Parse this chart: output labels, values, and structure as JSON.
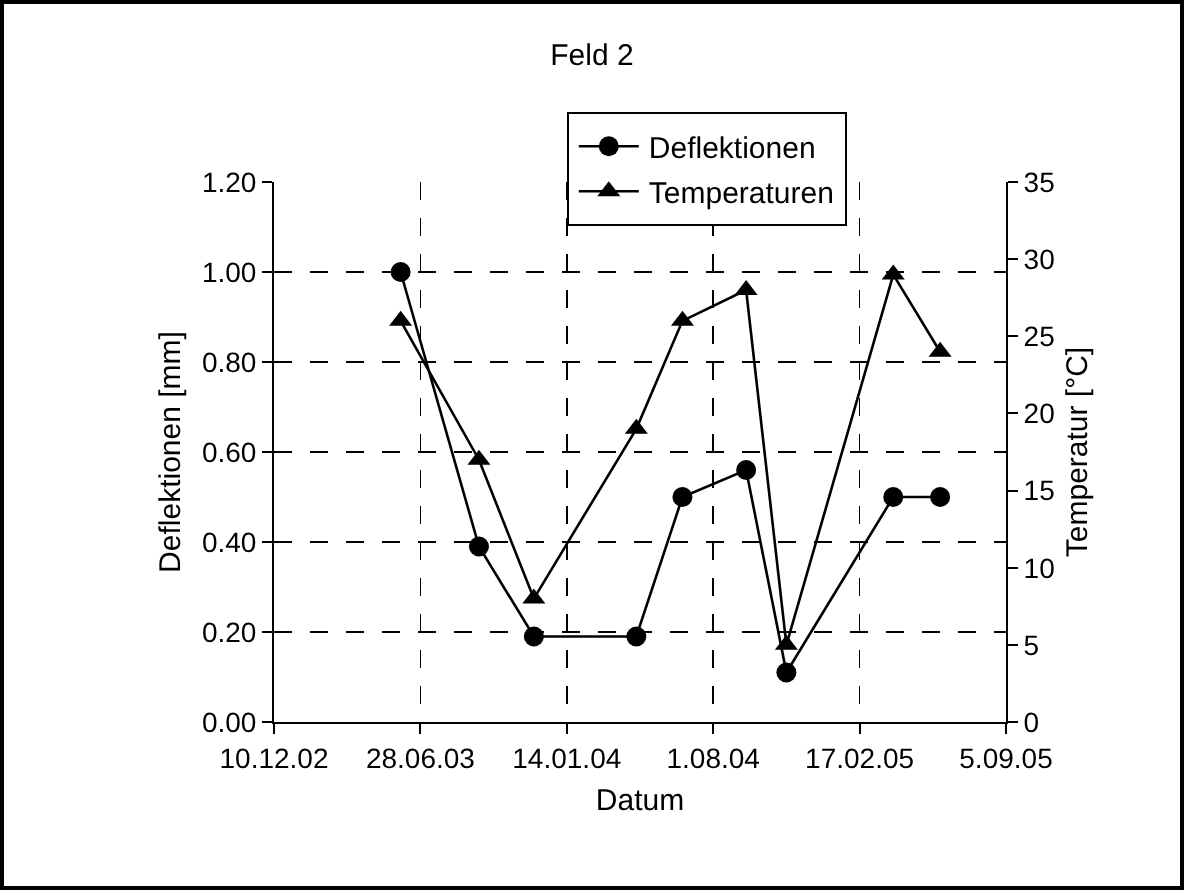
{
  "chart_data": {
    "type": "line",
    "title": "Feld 2",
    "xlabel": "Datum",
    "ylabel": "Deflektionen [mm]",
    "y2label": "Temperatur [°C]",
    "x": [
      "2003-06-01",
      "2003-09-16",
      "2003-11-30",
      "2004-04-18",
      "2004-06-20",
      "2004-09-15",
      "2004-11-09",
      "2005-04-04",
      "2005-06-07"
    ],
    "series": [
      {
        "name": "Deflektionen",
        "color": "#000000",
        "marker": "circle",
        "values": [
          1.0,
          0.39,
          0.19,
          0.19,
          0.5,
          0.56,
          0.11,
          0.5,
          0.5
        ]
      },
      {
        "name": "Temperaturen",
        "color": "#000000",
        "marker": "triangle",
        "axis": "y2",
        "values": [
          26,
          17,
          8,
          19,
          26,
          28,
          5,
          29,
          24
        ]
      }
    ],
    "xlim": [
      "2002-12-10",
      "2005-09-05"
    ],
    "xticks": [
      {
        "value": "2002-12-10",
        "label": "10.12.02"
      },
      {
        "value": "2003-06-28",
        "label": "28.06.03"
      },
      {
        "value": "2004-01-14",
        "label": "14.01.04"
      },
      {
        "value": "2004-08-01",
        "label": "1.08.04"
      },
      {
        "value": "2005-02-17",
        "label": "17.02.05"
      },
      {
        "value": "2005-09-05",
        "label": "5.09.05"
      }
    ],
    "ylim": [
      0,
      1.2
    ],
    "yticks": [
      {
        "value": 0,
        "label": "0.00"
      },
      {
        "value": 0.2,
        "label": "0.20"
      },
      {
        "value": 0.4,
        "label": "0.40"
      },
      {
        "value": 0.6,
        "label": "0.60"
      },
      {
        "value": 0.8,
        "label": "0.80"
      },
      {
        "value": 1.0,
        "label": "1.00"
      },
      {
        "value": 1.2,
        "label": "1.20"
      }
    ],
    "y2lim": [
      0,
      35
    ],
    "y2ticks": [
      0,
      5,
      10,
      15,
      20,
      25,
      30,
      35
    ],
    "grid": true,
    "legend": "top right",
    "line_style": "solid"
  }
}
